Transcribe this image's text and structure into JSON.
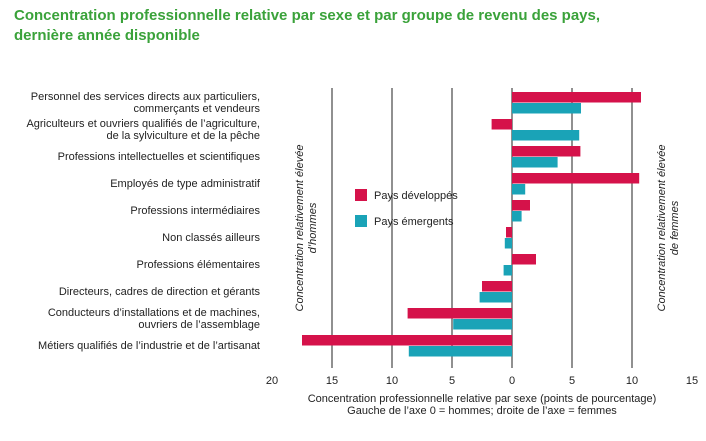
{
  "chart_data": {
    "type": "bar",
    "orientation": "horizontal",
    "title": [
      "Concentration professionnelle relative par sexe et par groupe de revenu des pays,",
      "dernière année disponible"
    ],
    "categories": [
      [
        "Personnel des services directs aux particuliers,",
        "commerçants et vendeurs"
      ],
      [
        "Agriculteurs et ouvriers qualifiés de l’agriculture,",
        "de la sylviculture et de la pêche"
      ],
      [
        "Professions intellectuelles et scientifiques"
      ],
      [
        "Employés de type administratif"
      ],
      [
        "Professions intermédiaires"
      ],
      [
        "Non classés ailleurs"
      ],
      [
        "Professions élémentaires"
      ],
      [
        "Directeurs, cadres de direction et gérants"
      ],
      [
        "Conducteurs d’installations et de machines,",
        "ouvriers de l’assemblage"
      ],
      [
        "Métiers qualifiés de l’industrie et de l’artisanat"
      ]
    ],
    "series": [
      {
        "name": "Pays développés",
        "color": "#d5124a",
        "values": [
          10.75,
          -1.7,
          5.7,
          10.6,
          1.5,
          -0.5,
          2.0,
          -2.5,
          -8.7,
          -17.5
        ]
      },
      {
        "name": "Pays émergents",
        "color": "#1aa3b7",
        "values": [
          5.75,
          5.6,
          3.8,
          1.1,
          0.8,
          -0.6,
          -0.7,
          -2.7,
          -4.9,
          -8.6
        ]
      }
    ],
    "xlim": [
      -20,
      15
    ],
    "xticks": [
      {
        "value": -20,
        "label": "20"
      },
      {
        "value": -15,
        "label": "15"
      },
      {
        "value": -10,
        "label": "10"
      },
      {
        "value": -5,
        "label": "5"
      },
      0,
      5,
      10,
      15
    ],
    "grid": true,
    "xlabel": [
      "Concentration professionnelle relative par sexe (points de pourcentage)",
      "Gauche de l’axe 0 = hommes; droite de l’axe = femmes"
    ],
    "annotations": [
      [
        "Concentration relativement élevée",
        "d’hommes"
      ],
      [
        "Concentration relativement élevée",
        "de femmes"
      ]
    ]
  }
}
